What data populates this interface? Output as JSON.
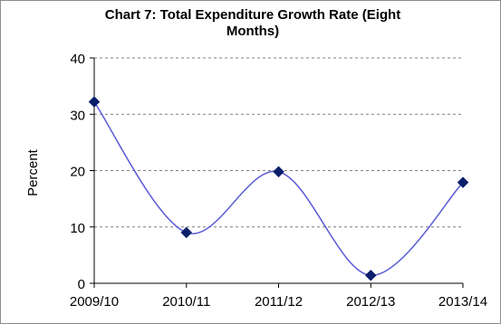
{
  "chart_data": {
    "type": "line",
    "title_lines": [
      "Chart 7: Total Expenditure Growth Rate (Eight",
      "Months)"
    ],
    "xlabel": "",
    "ylabel": "Percent",
    "categories": [
      "2009/10",
      "2010/11",
      "2011/12",
      "2012/13",
      "2013/14"
    ],
    "series": [
      {
        "values": [
          32.2,
          9.0,
          19.8,
          1.4,
          17.9
        ]
      }
    ],
    "ylim": [
      0,
      40
    ],
    "yticks": [
      "0",
      "10",
      "20",
      "30",
      "40"
    ],
    "grid": "horizontal-dashed",
    "line_style": "smoothed",
    "marker": "diamond",
    "colors": {
      "line": "#5b5bd6",
      "marker": "#0a1f6b",
      "grid": "#7f7f7f",
      "axis": "#000000"
    }
  }
}
